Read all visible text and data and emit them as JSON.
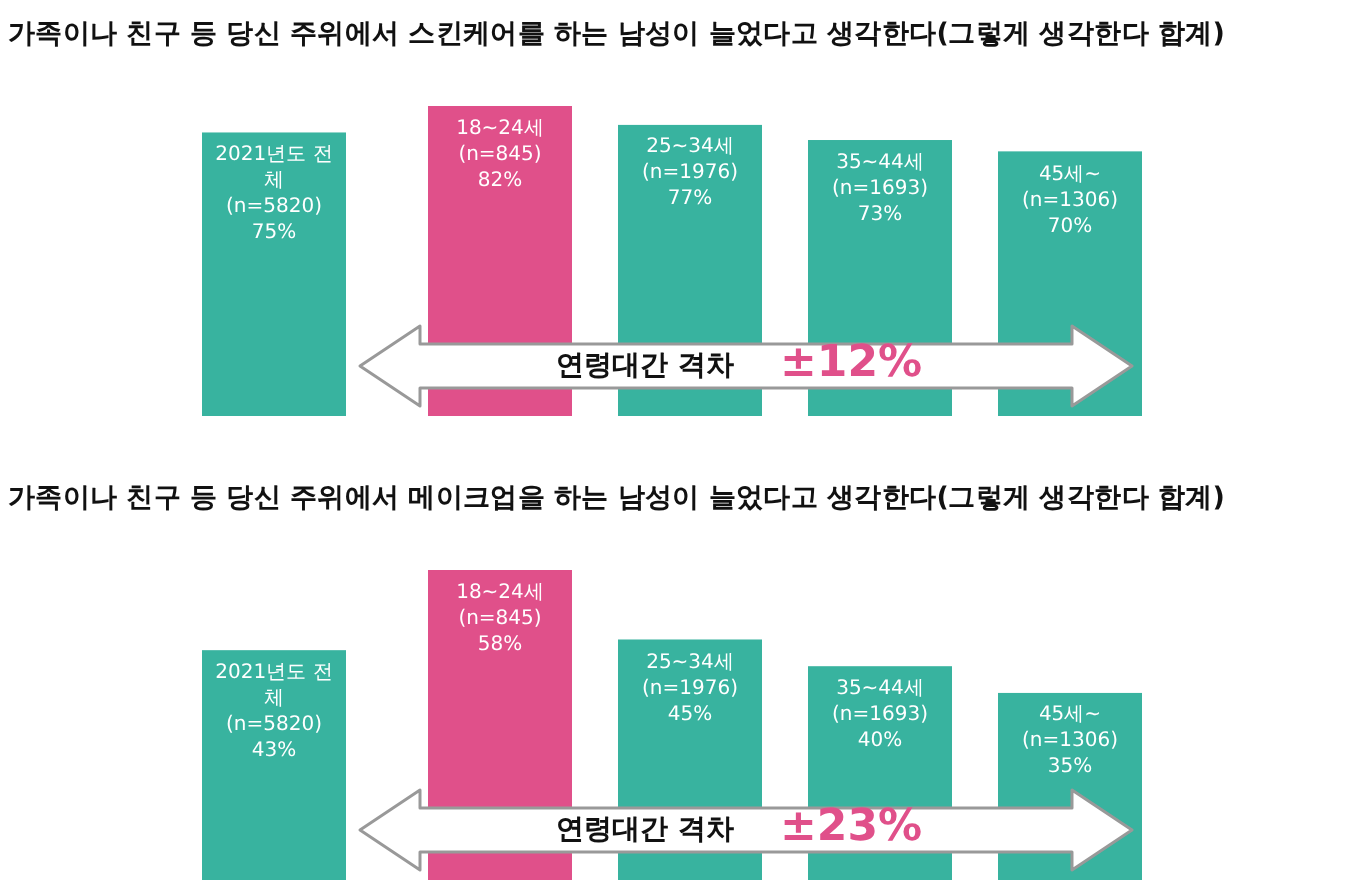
{
  "chart_data": [
    {
      "type": "bar",
      "title": "가족이나 친구 등 당신 주위에서 스킨케어를 하는 남성이 늘었다고 생각한다(그렇게 생각한다 합계)",
      "categories": [
        "2021년도 전체 (n=5820)",
        "18~24세 (n=845)",
        "25~34세 (n=1976)",
        "35~44세 (n=1693)",
        "45세~ (n=1306)"
      ],
      "values": [
        75,
        82,
        77,
        73,
        70
      ],
      "value_labels": [
        "75%",
        "82%",
        "77%",
        "73%",
        "70%"
      ],
      "colors": [
        "#38b39f",
        "#e0508a",
        "#38b39f",
        "#38b39f",
        "#38b39f"
      ],
      "annotations": [
        "연령대간 격차",
        "±12%"
      ]
    },
    {
      "type": "bar",
      "title": "가족이나 친구 등 당신 주위에서 메이크업을 하는 남성이 늘었다고 생각한다(그렇게 생각한다 합계)",
      "categories": [
        "2021년도 전체 (n=5820)",
        "18~24세 (n=845)",
        "25~34세 (n=1976)",
        "35~44세 (n=1693)",
        "45세~ (n=1306)"
      ],
      "values": [
        43,
        58,
        45,
        40,
        35
      ],
      "value_labels": [
        "43%",
        "58%",
        "45%",
        "40%",
        "35%"
      ],
      "colors": [
        "#38b39f",
        "#e0508a",
        "#38b39f",
        "#38b39f",
        "#38b39f"
      ],
      "annotations": [
        "연령대간 격차",
        "±23%"
      ]
    }
  ]
}
